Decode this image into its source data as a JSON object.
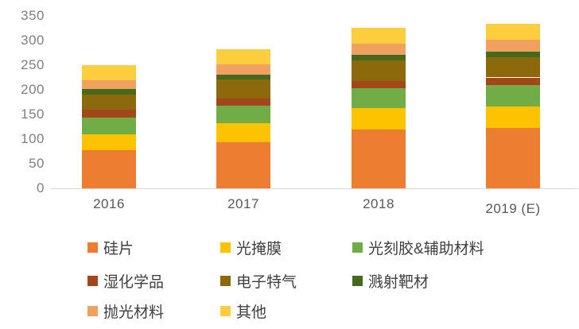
{
  "chart_data": {
    "type": "bar",
    "stacked": true,
    "title": "",
    "xlabel": "",
    "ylabel": "",
    "categories": [
      "2016",
      "2017",
      "2018",
      "2019 (E)"
    ],
    "series": [
      {
        "name": "硅片",
        "color": "#ED7D31",
        "values": [
          77,
          93,
          120,
          123
        ]
      },
      {
        "name": "光掩膜",
        "color": "#FDC300",
        "values": [
          33,
          39,
          43,
          43
        ]
      },
      {
        "name": "光刻胶&辅助材料",
        "color": "#70AD47",
        "values": [
          34,
          35,
          40,
          43
        ]
      },
      {
        "name": "湿化学品",
        "color": "#A3471B",
        "values": [
          16,
          16,
          15,
          16
        ]
      },
      {
        "name": "电子特气",
        "color": "#8C690A",
        "values": [
          31,
          38,
          42,
          41
        ]
      },
      {
        "name": "溅射靶材",
        "color": "#44691F",
        "values": [
          11,
          10,
          11,
          12
        ]
      },
      {
        "name": "抛光材料",
        "color": "#F0A05F",
        "values": [
          18,
          20,
          23,
          24
        ]
      },
      {
        "name": "其他",
        "color": "#FCCD3C",
        "values": [
          30,
          31,
          32,
          32
        ]
      }
    ],
    "ylim": [
      0,
      350
    ],
    "yticks": [
      0,
      50,
      100,
      150,
      200,
      250,
      300,
      350
    ],
    "grid": false,
    "legend_position": "bottom"
  },
  "colors": {
    "background": "#FFFFFF",
    "axis_tick_label": "#808080",
    "category_label": "#595959",
    "legend_label": "#3F3F3F",
    "baseline": "#D9D9D9"
  }
}
